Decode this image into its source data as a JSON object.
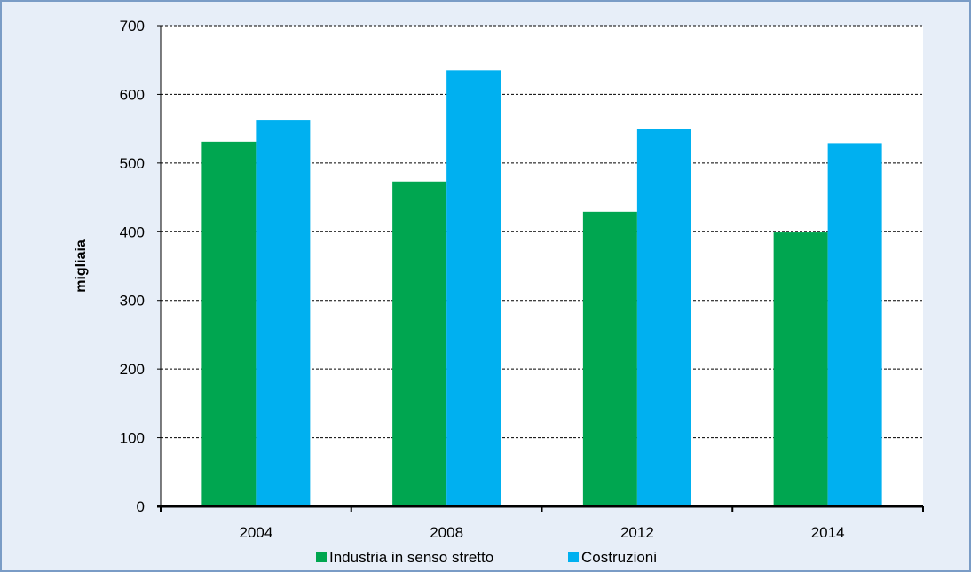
{
  "chart_data": {
    "type": "bar",
    "title": "",
    "xlabel": "",
    "ylabel": "migliaia",
    "categories": [
      "2004",
      "2008",
      "2012",
      "2014"
    ],
    "series": [
      {
        "name": "Industria in senso stretto",
        "color": "#00a650",
        "values": [
          531,
          473,
          429,
          399
        ]
      },
      {
        "name": "Costruzioni",
        "color": "#00b0f0",
        "values": [
          563,
          635,
          550,
          529
        ]
      }
    ],
    "ylim": [
      0,
      700
    ],
    "yticks": [
      0,
      100,
      200,
      300,
      400,
      500,
      600,
      700
    ],
    "grid": true,
    "legend_position": "bottom"
  },
  "colors": {
    "background": "#e7eef8",
    "frame_border": "#7a9cc6",
    "plot_background": "#ffffff",
    "gridline": "#000000",
    "axis": "#000000"
  }
}
